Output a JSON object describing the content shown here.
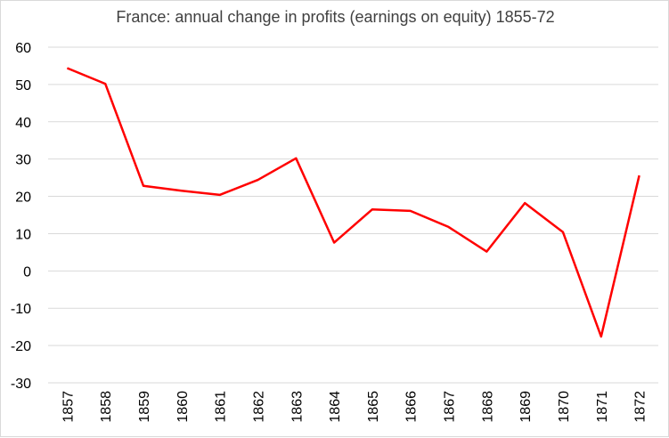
{
  "chart_data": {
    "type": "line",
    "title": "France: annual change in profits (earnings on equity) 1855-72",
    "xlabel": "",
    "ylabel": "",
    "ylim": [
      -30,
      60
    ],
    "yticks": [
      "60",
      "50",
      "40",
      "30",
      "20",
      "10",
      "0",
      "-10",
      "-20",
      "-30"
    ],
    "categories": [
      "1857",
      "1858",
      "1859",
      "1860",
      "1861",
      "1862",
      "1863",
      "1864",
      "1865",
      "1866",
      "1867",
      "1868",
      "1869",
      "1870",
      "1871",
      "1872"
    ],
    "series": [
      {
        "values": [
          54.4,
          50.2,
          22.8,
          21.5,
          20.4,
          24.4,
          30.2,
          7.6,
          16.5,
          16.1,
          11.8,
          5.2,
          18.2,
          10.4,
          -17.6,
          25.6
        ],
        "color": "#ff0000"
      }
    ],
    "grid": true,
    "legend": "none",
    "colors": {
      "gridline": "#d9d9d9",
      "line": "#ff0000",
      "title": "#404040"
    }
  }
}
